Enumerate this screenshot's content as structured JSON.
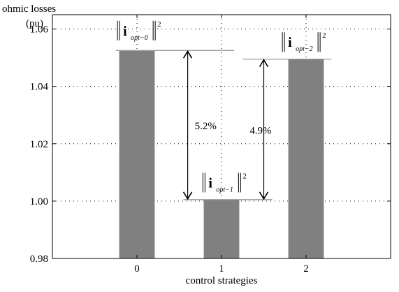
{
  "chart_data": {
    "type": "bar",
    "categories": [
      "0",
      "1",
      "2"
    ],
    "values": [
      1.0525,
      1.0005,
      1.0495
    ],
    "ylabel_line1": "ohmic losses",
    "ylabel_line2": "(pu)",
    "xlabel": "control strategies",
    "ylim": [
      0.98,
      1.065
    ],
    "xlim": [
      -1,
      3
    ],
    "yticks": [
      0.98,
      1.0,
      1.02,
      1.04,
      1.06
    ],
    "ytick_labels": [
      "0.98",
      "1.00",
      "1.02",
      "1.04",
      "1.06"
    ],
    "xticks": [
      0,
      1,
      2
    ],
    "xtick_labels": [
      "0",
      "1",
      "2"
    ],
    "grid": true,
    "grid_style": "dotted",
    "bar_color": "#808080",
    "bar_labels": [
      {
        "bold": "i",
        "sub": "opt−0",
        "sup": "2"
      },
      {
        "bold": "i",
        "sub": "opt−1",
        "sup": "2"
      },
      {
        "bold": "i",
        "sub": "opt−2",
        "sup": "2"
      }
    ],
    "annotations": [
      {
        "text": "5.2%",
        "from_value": 1.0525,
        "to_value": 1.0005
      },
      {
        "text": "4.9%",
        "from_value": 1.0495,
        "to_value": 1.0005
      }
    ]
  }
}
